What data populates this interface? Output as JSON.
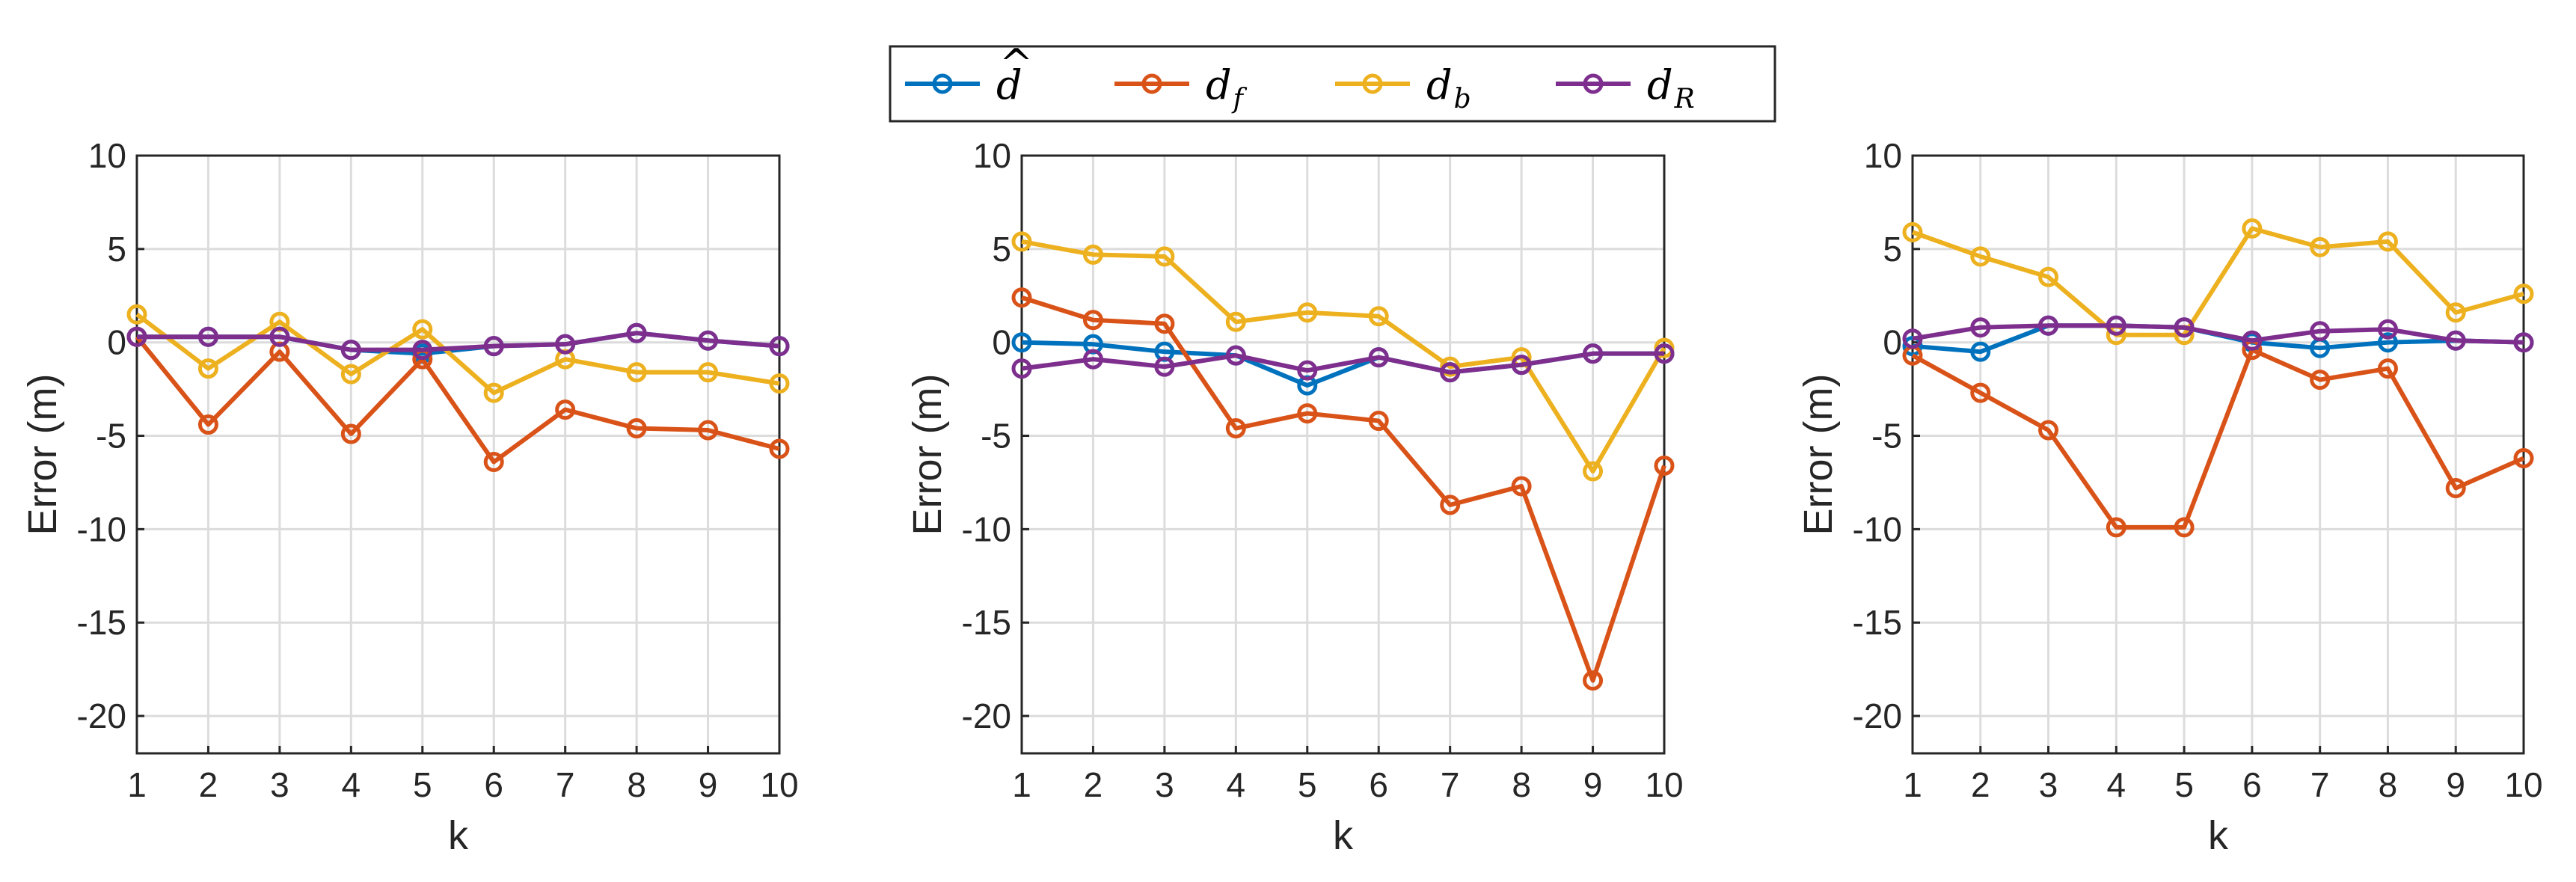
{
  "legend": {
    "entries": [
      {
        "key": "dhat",
        "base": "d",
        "hat": "^",
        "sub": "",
        "color": "#0072BD"
      },
      {
        "key": "df",
        "base": "d",
        "hat": "",
        "sub": "f",
        "color": "#D95319"
      },
      {
        "key": "db",
        "base": "d",
        "hat": "",
        "sub": "b",
        "color": "#EDB120"
      },
      {
        "key": "dR",
        "base": "d",
        "hat": "",
        "sub": "R",
        "color": "#7E2F8E"
      }
    ]
  },
  "chart_data": [
    {
      "type": "line",
      "title": "",
      "xlabel": "k",
      "ylabel": "Error (m)",
      "xlim": [
        1,
        10
      ],
      "ylim": [
        -22,
        10
      ],
      "xticks": [
        "1",
        "2",
        "3",
        "4",
        "5",
        "6",
        "7",
        "8",
        "9",
        "10"
      ],
      "yticks": [
        "10",
        "5",
        "0",
        "-5",
        "-10",
        "-15",
        "-20"
      ],
      "grid": true,
      "x": [
        1,
        2,
        3,
        4,
        5,
        6,
        7,
        8,
        9,
        10
      ],
      "series": [
        {
          "name": "dhat",
          "color": "#0072BD",
          "values": [
            0.3,
            0.3,
            0.3,
            -0.4,
            -0.6,
            -0.2,
            -0.1,
            0.5,
            0.1,
            -0.2
          ]
        },
        {
          "name": "df",
          "color": "#D95319",
          "values": [
            0.3,
            -4.4,
            -0.5,
            -4.9,
            -0.9,
            -6.4,
            -3.6,
            -4.6,
            -4.7,
            -5.7
          ]
        },
        {
          "name": "db",
          "color": "#EDB120",
          "values": [
            1.5,
            -1.4,
            1.1,
            -1.7,
            0.7,
            -2.7,
            -0.9,
            -1.6,
            -1.6,
            -2.2
          ]
        },
        {
          "name": "dR",
          "color": "#7E2F8E",
          "values": [
            0.3,
            0.3,
            0.3,
            -0.4,
            -0.4,
            -0.2,
            -0.1,
            0.5,
            0.1,
            -0.2
          ]
        }
      ]
    },
    {
      "type": "line",
      "title": "",
      "xlabel": "k",
      "ylabel": "Error (m)",
      "xlim": [
        1,
        10
      ],
      "ylim": [
        -22,
        10
      ],
      "xticks": [
        "1",
        "2",
        "3",
        "4",
        "5",
        "6",
        "7",
        "8",
        "9",
        "10"
      ],
      "yticks": [
        "10",
        "5",
        "0",
        "-5",
        "-10",
        "-15",
        "-20"
      ],
      "grid": true,
      "x": [
        1,
        2,
        3,
        4,
        5,
        6,
        7,
        8,
        9,
        10
      ],
      "series": [
        {
          "name": "dhat",
          "color": "#0072BD",
          "values": [
            0.0,
            -0.1,
            -0.5,
            -0.7,
            -2.3,
            -0.8,
            -1.6,
            -1.2,
            -0.6,
            -0.6
          ]
        },
        {
          "name": "df",
          "color": "#D95319",
          "values": [
            2.4,
            1.2,
            1.0,
            -4.6,
            -3.8,
            -4.2,
            -8.7,
            -7.7,
            -18.1,
            -6.6
          ]
        },
        {
          "name": "db",
          "color": "#EDB120",
          "values": [
            5.4,
            4.7,
            4.6,
            1.1,
            1.6,
            1.4,
            -1.3,
            -0.8,
            -6.9,
            -0.3
          ]
        },
        {
          "name": "dR",
          "color": "#7E2F8E",
          "values": [
            -1.4,
            -0.9,
            -1.3,
            -0.7,
            -1.5,
            -0.8,
            -1.6,
            -1.2,
            -0.6,
            -0.6
          ]
        }
      ]
    },
    {
      "type": "line",
      "title": "",
      "xlabel": "k",
      "ylabel": "Error (m)",
      "xlim": [
        1,
        10
      ],
      "ylim": [
        -22,
        10
      ],
      "xticks": [
        "1",
        "2",
        "3",
        "4",
        "5",
        "6",
        "7",
        "8",
        "9",
        "10"
      ],
      "yticks": [
        "10",
        "5",
        "0",
        "-5",
        "-10",
        "-15",
        "-20"
      ],
      "grid": true,
      "x": [
        1,
        2,
        3,
        4,
        5,
        6,
        7,
        8,
        9,
        10
      ],
      "series": [
        {
          "name": "dhat",
          "color": "#0072BD",
          "values": [
            -0.2,
            -0.5,
            0.9,
            0.9,
            0.8,
            0.0,
            -0.3,
            0.0,
            0.1,
            0.0
          ]
        },
        {
          "name": "df",
          "color": "#D95319",
          "values": [
            -0.7,
            -2.7,
            -4.7,
            -9.9,
            -9.9,
            -0.4,
            -2.0,
            -1.4,
            -7.8,
            -6.2
          ]
        },
        {
          "name": "db",
          "color": "#EDB120",
          "values": [
            5.9,
            4.6,
            3.5,
            0.4,
            0.4,
            6.1,
            5.1,
            5.4,
            1.6,
            2.6
          ]
        },
        {
          "name": "dR",
          "color": "#7E2F8E",
          "values": [
            0.2,
            0.8,
            0.9,
            0.9,
            0.8,
            0.1,
            0.6,
            0.7,
            0.1,
            0.0
          ]
        }
      ]
    }
  ]
}
